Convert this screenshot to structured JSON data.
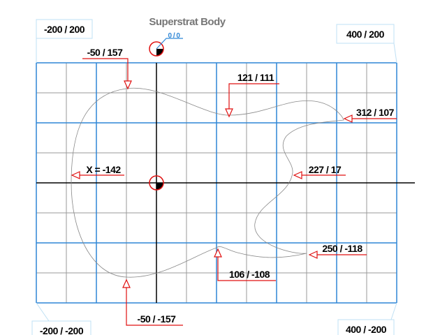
{
  "title": "Superstrat Body",
  "origin_label": "0 / 0",
  "corners": [
    "-200 / 200",
    "400 / 200",
    "-200 / -200",
    "400 / -200"
  ],
  "annotations": [
    "-50 / 157",
    "121 / 111",
    "312 / 107",
    "X = -142",
    "227 / 17",
    "250 / -118",
    "106 / -108",
    "-50 / -157"
  ]
}
